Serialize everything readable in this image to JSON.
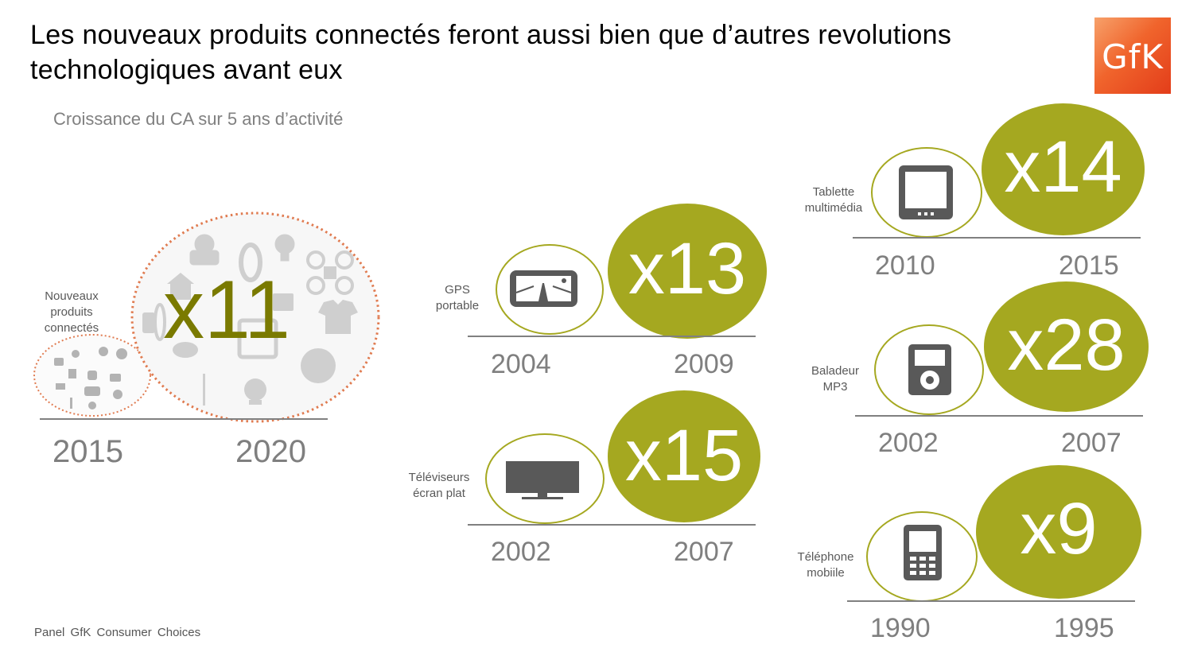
{
  "title": "Les nouveaux produits connectés feront aussi bien que d’autres revolutions technologiques avant eux",
  "subtitle": "Croissance du CA sur 5 ans d’activité",
  "footer": "Panel GfK Consumer Choices",
  "logo": {
    "text": "GfK",
    "color": "#f0642c"
  },
  "colors": {
    "accent": "#a5a820",
    "text_gray": "#7f7f7f",
    "line": "#808080",
    "dotted": "#e07b50"
  },
  "connected": {
    "label": "Nouveaux produits connectés",
    "multiplier": "x11",
    "start_year": "2015",
    "end_year": "2020",
    "icons": [
      "scale-icon",
      "ring-icon",
      "lightbulb-icon",
      "drone-icon",
      "smart-home-icon",
      "tshirt-icon",
      "wristband-icon",
      "smart-plug-icon",
      "thermometer-icon",
      "webcam-icon",
      "toothbrush-icon",
      "brain-icon",
      "envelope-icon"
    ]
  },
  "products": [
    {
      "id": "gps",
      "label_line1": "GPS",
      "label_line2": "portable",
      "multiplier": "x13",
      "start_year": "2004",
      "end_year": "2009",
      "icon": "gps-icon"
    },
    {
      "id": "tv",
      "label_line1": "Téléviseurs",
      "label_line2": "écran plat",
      "multiplier": "x15",
      "start_year": "2002",
      "end_year": "2007",
      "icon": "flat-tv-icon"
    },
    {
      "id": "tablet",
      "label_line1": "Tablette",
      "label_line2": "multimédia",
      "multiplier": "x14",
      "start_year": "2010",
      "end_year": "2015",
      "icon": "tablet-icon"
    },
    {
      "id": "mp3",
      "label_line1": "Baladeur",
      "label_line2": "MP3",
      "multiplier": "x28",
      "start_year": "2002",
      "end_year": "2007",
      "icon": "mp3-player-icon"
    },
    {
      "id": "phone",
      "label_line1": "Téléphone",
      "label_line2": "mobiile",
      "multiplier": "x9",
      "start_year": "1990",
      "end_year": "1995",
      "icon": "mobile-phone-icon"
    }
  ]
}
